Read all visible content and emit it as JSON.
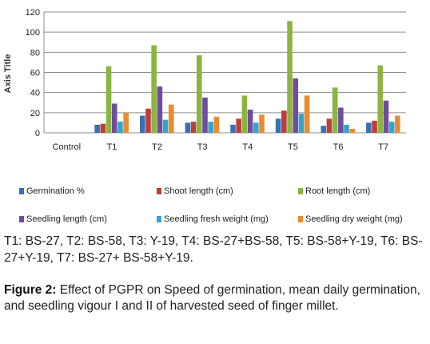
{
  "chart_data": {
    "type": "bar",
    "ylabel": "Axis Title",
    "ylim": [
      0,
      120
    ],
    "yticks": [
      0,
      20,
      40,
      60,
      80,
      100,
      120
    ],
    "grid": true,
    "legend_position": "bottom",
    "categories": [
      "Control",
      "T1",
      "T2",
      "T3",
      "T4",
      "T5",
      "T6",
      "T7"
    ],
    "series": [
      {
        "name": "Germination %",
        "color": "#3a6fb0",
        "values": [
          0,
          8,
          17,
          10,
          8,
          14,
          7,
          10
        ]
      },
      {
        "name": "Shoot length (cm)",
        "color": "#b8403a",
        "values": [
          0,
          9,
          24,
          11,
          14,
          22,
          14,
          12
        ]
      },
      {
        "name": "Root length (cm)",
        "color": "#8db440",
        "values": [
          0,
          66,
          87,
          77,
          37,
          111,
          45,
          67
        ]
      },
      {
        "name": "Seedling length (cm)",
        "color": "#6e4d9e",
        "values": [
          0,
          29,
          46,
          35,
          23,
          54,
          25,
          32
        ]
      },
      {
        "name": "Seedling fresh weight (mg)",
        "color": "#37a3c6",
        "values": [
          0,
          11,
          13,
          11,
          10,
          19,
          8,
          11
        ]
      },
      {
        "name": "Seedling dry weight  (mg)",
        "color": "#ec8a30",
        "values": [
          0,
          20,
          28,
          16,
          18,
          37,
          4,
          17
        ]
      }
    ]
  },
  "notes": "T1: BS-27, T2: BS-58, T3: Y-19, T4: BS-27+BS-58, T5: BS-58+Y-19, T6: BS-27+Y-19, T7: BS-27+ BS-58+Y-19.",
  "caption": {
    "label": "Figure 2:",
    "text": " Effect of PGPR on Speed of germination, mean daily germination, and seedling vigour I and II of harvested seed of finger millet."
  }
}
